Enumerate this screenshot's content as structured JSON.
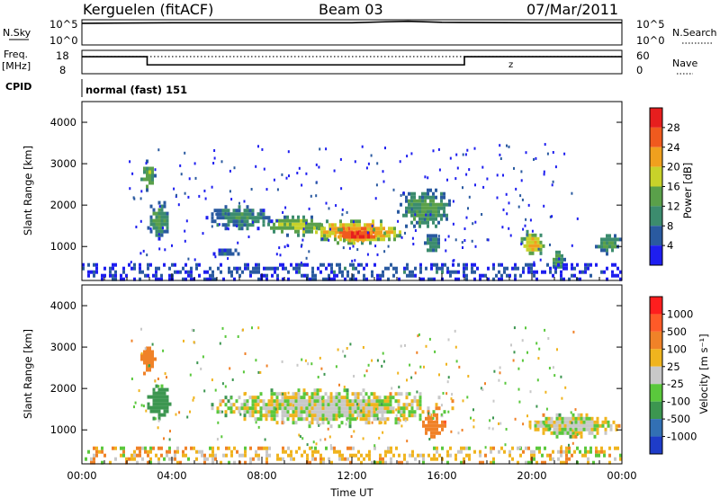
{
  "header": {
    "station": "Kerguelen (fitACF)",
    "beam": "Beam 03",
    "date": "07/Mar/2011"
  },
  "labels": {
    "nsky": "N.Sky",
    "nsearch": "N.Search",
    "freq": "Freq.",
    "freq_unit": "[MHz]",
    "nave": "Nave",
    "cpid": "CPID",
    "cpid_value": "normal (fast) 151",
    "nsky_tick_hi": "10^5",
    "nsky_tick_lo": "10^0",
    "nsearch_tick_hi": "10^5",
    "nsearch_tick_lo": "10^0",
    "freq_tick_hi": "18",
    "freq_tick_lo": "8",
    "nave_tick_hi": "60",
    "nave_tick_lo": "0",
    "slant_range": "Slant Range [km]",
    "time_ut": "Time UT",
    "power": "Power [dB]",
    "velocity": "Velocity [m s⁻¹]"
  },
  "chart_data": [
    {
      "type": "line",
      "name": "noise panel",
      "series": [
        {
          "name": "N.Sky",
          "x": [
            0,
            4,
            8,
            12,
            13.5,
            14.5,
            16,
            20,
            24
          ],
          "y": [
            4.3,
            4.4,
            4.4,
            4.4,
            4.6,
            4.7,
            4.5,
            4.4,
            4.4
          ]
        }
      ],
      "ylim_left": [
        0,
        5
      ],
      "ylim_right": [
        0,
        5
      ],
      "xlim": [
        0,
        24
      ]
    },
    {
      "type": "line",
      "name": "frequency panel",
      "series": [
        {
          "name": "Freq",
          "x": [
            0,
            2.9,
            2.9,
            17,
            17,
            24
          ],
          "y": [
            15.3,
            15.3,
            11.8,
            11.8,
            15.3,
            15.3
          ]
        },
        {
          "name": "Nave",
          "x": [
            0,
            24
          ],
          "y": [
            44,
            44
          ]
        }
      ],
      "ylim_left": [
        8,
        18
      ],
      "ylim_right": [
        0,
        60
      ],
      "annotation": "z"
    },
    {
      "type": "heatmap",
      "name": "power",
      "xlabel": "",
      "ylabel": "Slant Range [km]",
      "xlim": [
        0,
        24
      ],
      "ylim": [
        180,
        4500
      ],
      "yticks": [
        1000,
        2000,
        3000,
        4000
      ],
      "colorbar": {
        "label": "Power [dB]",
        "ticks": [
          4,
          8,
          12,
          16,
          20,
          24,
          28
        ],
        "range": [
          0,
          30
        ]
      },
      "colors": [
        "#1e1ef0",
        "#2a5aa0",
        "#3c8c6e",
        "#5aa04a",
        "#c8d22a",
        "#f0a01e",
        "#f05a1e",
        "#e61e1e"
      ],
      "regions": [
        {
          "t": [
            2.6,
            3.3
          ],
          "r": [
            2300,
            3100
          ],
          "level": 14
        },
        {
          "t": [
            2.9,
            4.0
          ],
          "r": [
            1200,
            2100
          ],
          "level": 12
        },
        {
          "t": [
            5.5,
            8.5
          ],
          "r": [
            1400,
            2000
          ],
          "level": 10
        },
        {
          "t": [
            5.7,
            7.3
          ],
          "r": [
            750,
            950
          ],
          "level": 6
        },
        {
          "t": [
            8.0,
            11.0
          ],
          "r": [
            1250,
            1750
          ],
          "level": 16
        },
        {
          "t": [
            10.0,
            14.5
          ],
          "r": [
            1050,
            1650
          ],
          "level": 24
        },
        {
          "t": [
            11.0,
            13.5
          ],
          "r": [
            1100,
            1450
          ],
          "level": 28
        },
        {
          "t": [
            14.0,
            16.5
          ],
          "r": [
            1400,
            2400
          ],
          "level": 12
        },
        {
          "t": [
            15.2,
            16.0
          ],
          "r": [
            800,
            1300
          ],
          "level": 10
        },
        {
          "t": [
            19.5,
            20.6
          ],
          "r": [
            700,
            1400
          ],
          "level": 20
        },
        {
          "t": [
            20.8,
            21.5
          ],
          "r": [
            400,
            900
          ],
          "level": 12
        },
        {
          "t": [
            22.8,
            24.0
          ],
          "r": [
            800,
            1300
          ],
          "level": 12
        },
        {
          "t": [
            0.0,
            24.0
          ],
          "r": [
            200,
            600
          ],
          "level": 6
        }
      ]
    },
    {
      "type": "heatmap",
      "name": "velocity",
      "xlabel": "Time UT",
      "ylabel": "Slant Range [km]",
      "xlim": [
        0,
        24
      ],
      "ylim": [
        180,
        4500
      ],
      "yticks": [
        1000,
        2000,
        3000,
        4000
      ],
      "xticks": [
        "00:00",
        "04:00",
        "08:00",
        "12:00",
        "16:00",
        "20:00",
        "00:00"
      ],
      "colorbar": {
        "label": "Velocity [m s⁻¹]",
        "ticks": [
          1000,
          500,
          100,
          25,
          -25,
          -100,
          -500,
          -1000
        ]
      },
      "colors": [
        "#1e3cc8",
        "#3270b4",
        "#3c9650",
        "#5ac83c",
        "#c8c8c8",
        "#f0b41e",
        "#f08228",
        "#ff5a28",
        "#ff1e1e"
      ],
      "regions": [
        {
          "t": [
            2.6,
            3.3
          ],
          "r": [
            2300,
            3100
          ],
          "v": -300
        },
        {
          "t": [
            2.9,
            4.0
          ],
          "r": [
            1200,
            2100
          ],
          "v": 200
        },
        {
          "t": [
            5.5,
            16.5
          ],
          "r": [
            1100,
            2000
          ],
          "v": 0
        },
        {
          "t": [
            15.0,
            16.2
          ],
          "r": [
            800,
            1400
          ],
          "v": -400
        },
        {
          "t": [
            19.5,
            24.0
          ],
          "r": [
            800,
            1400
          ],
          "v": 0
        },
        {
          "t": [
            0.0,
            24.0
          ],
          "r": [
            200,
            600
          ],
          "v": -50
        }
      ]
    }
  ],
  "colors": {
    "axis": "#000000",
    "dotted": "#000000"
  }
}
